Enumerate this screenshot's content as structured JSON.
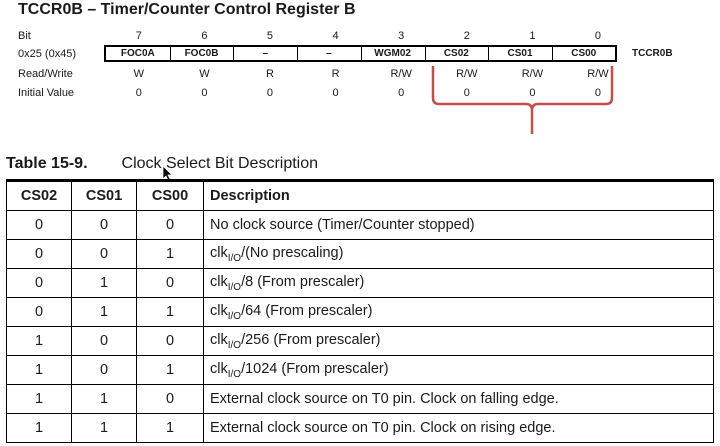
{
  "register": {
    "title": "TCCR0B – Timer/Counter Control Register B",
    "name": "TCCR0B",
    "labels": {
      "bit": "Bit",
      "address": "0x25 (0x45)",
      "rw": "Read/Write",
      "initial": "Initial Value"
    },
    "bits": [
      "7",
      "6",
      "5",
      "4",
      "3",
      "2",
      "1",
      "0"
    ],
    "names": [
      "FOC0A",
      "FOC0B",
      "–",
      "–",
      "WGM02",
      "CS02",
      "CS01",
      "CS00"
    ],
    "rw": [
      "W",
      "W",
      "R",
      "R",
      "R/W",
      "R/W",
      "R/W",
      "R/W"
    ],
    "initial": [
      "0",
      "0",
      "0",
      "0",
      "0",
      "0",
      "0",
      "0"
    ],
    "highlight_color": "#c0504d"
  },
  "table": {
    "caption_number": "Table 15-9.",
    "caption_text": "Clock Select Bit Description",
    "headers": [
      "CS02",
      "CS01",
      "CS00",
      "Description"
    ],
    "rows": [
      [
        "0",
        "0",
        "0",
        "No clock source (Timer/Counter stopped)"
      ],
      [
        "0",
        "0",
        "1",
        "clk",
        "I/O",
        "/(No prescaling)"
      ],
      [
        "0",
        "1",
        "0",
        "clk",
        "I/O",
        "/8 (From prescaler)"
      ],
      [
        "0",
        "1",
        "1",
        "clk",
        "I/O",
        "/64 (From prescaler)"
      ],
      [
        "1",
        "0",
        "0",
        "clk",
        "I/O",
        "/256 (From prescaler)"
      ],
      [
        "1",
        "0",
        "1",
        "clk",
        "I/O",
        "/1024 (From prescaler)"
      ],
      [
        "1",
        "1",
        "0",
        "External clock source on T0 pin. Clock on falling edge."
      ],
      [
        "1",
        "1",
        "1",
        "External clock source on T0 pin. Clock on rising edge."
      ]
    ]
  }
}
